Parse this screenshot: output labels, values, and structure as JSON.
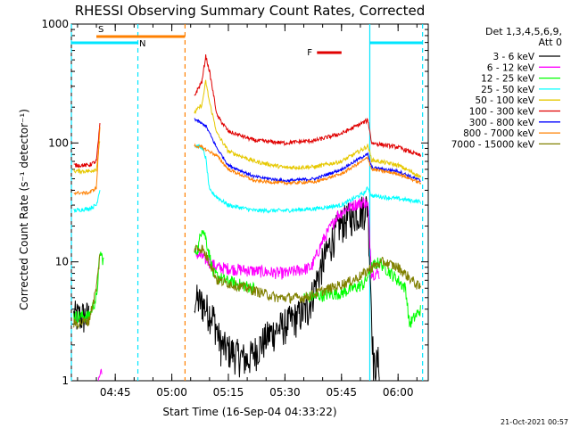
{
  "chart_data": {
    "type": "line",
    "title": "RHESSI Observing Summary Count Rates, Corrected",
    "ylabel": "Corrected Count Rate (s⁻¹ detector⁻¹)",
    "xlabel": "Start Time (16-Sep-04 04:33:22)",
    "y_scale": "log",
    "ylim": [
      1,
      1000
    ],
    "y_ticks": [
      {
        "value": 1,
        "label": "1"
      },
      {
        "value": 10,
        "label": "10"
      },
      {
        "value": 100,
        "label": "100"
      },
      {
        "value": 1000,
        "label": "1000"
      }
    ],
    "xlim": [
      "04:33:22",
      "06:08:00"
    ],
    "x_ticks": [
      {
        "value": "04:45",
        "label": "04:45"
      },
      {
        "value": "05:00",
        "label": "05:00"
      },
      {
        "value": "05:15",
        "label": "05:15"
      },
      {
        "value": "05:30",
        "label": "05:30"
      },
      {
        "value": "05:45",
        "label": "05:45"
      },
      {
        "value": "06:00",
        "label": "06:00"
      }
    ],
    "legend_header": [
      "Det 1,3,4,5,6,9,",
      "Att 0"
    ],
    "legend_position": "right",
    "date_stamp": "21-Oct-2021 00:57",
    "intervals": [
      {
        "label": "S",
        "color": "#ff8000",
        "start": "04:40:00",
        "end": "05:03:30"
      },
      {
        "label": "N",
        "color": "#00e5ff",
        "start": "04:33:22",
        "end": "04:51:00"
      },
      {
        "label": "F",
        "color": "#e00000",
        "start": "05:38:30",
        "end": "05:45:00"
      },
      {
        "label": "",
        "color": "#00e5ff",
        "start": "05:52:30",
        "end": "06:06:30"
      }
    ],
    "vlines": [
      {
        "time": "04:33:22",
        "color": "#00e5ff",
        "style": "dashed"
      },
      {
        "time": "04:51:00",
        "color": "#00e5ff",
        "style": "dashed"
      },
      {
        "time": "05:03:30",
        "color": "#ff8000",
        "style": "dashed"
      },
      {
        "time": "05:52:30",
        "color": "#00e5ff",
        "style": "solid"
      },
      {
        "time": "06:06:30",
        "color": "#00e5ff",
        "style": "dashed"
      }
    ],
    "series": [
      {
        "name": "3 - 6 keV",
        "color": "#000000",
        "noise": 0.35,
        "points": [
          [
            "04:34",
            "3.5"
          ],
          [
            "04:38",
            "3.5"
          ],
          [
            "05:06",
            "5"
          ],
          [
            "05:08",
            "4.5"
          ],
          [
            "05:11",
            "3.5"
          ],
          [
            "05:13",
            "2"
          ],
          [
            "05:20",
            "1.5"
          ],
          [
            "05:26",
            "2.5"
          ],
          [
            "05:30",
            "3"
          ],
          [
            "05:36",
            "4"
          ],
          [
            "05:40",
            "10"
          ],
          [
            "05:44",
            "20"
          ],
          [
            "05:48",
            "25"
          ],
          [
            "05:51",
            "28"
          ],
          [
            "05:52",
            "30"
          ],
          [
            "05:53:30",
            "1.3"
          ],
          [
            "05:55",
            "1.5"
          ],
          [
            "06:07",
            "1.2"
          ]
        ]
      },
      {
        "name": "6 - 12 keV",
        "color": "#ff00ff",
        "noise": 0.12,
        "points": [
          [
            "04:40:30",
            "1"
          ],
          [
            "04:41:30",
            "1.3"
          ],
          [
            "05:06",
            "12"
          ],
          [
            "05:08",
            "11"
          ],
          [
            "05:12",
            "9"
          ],
          [
            "05:20",
            "8.5"
          ],
          [
            "05:30",
            "8"
          ],
          [
            "05:37",
            "9"
          ],
          [
            "05:40",
            "15"
          ],
          [
            "05:44",
            "25"
          ],
          [
            "05:48",
            "30"
          ],
          [
            "05:51",
            "32"
          ],
          [
            "05:52",
            "30"
          ],
          [
            "05:53",
            "8"
          ],
          [
            "05:55",
            "8"
          ]
        ]
      },
      {
        "name": "12 - 25 keV",
        "color": "#00ff00",
        "noise": 0.12,
        "points": [
          [
            "04:34",
            "3.5"
          ],
          [
            "04:38",
            "3.5"
          ],
          [
            "04:40",
            "5"
          ],
          [
            "04:41",
            "12"
          ],
          [
            "04:42",
            "10"
          ],
          [
            "05:06",
            "12"
          ],
          [
            "05:07",
            "13"
          ],
          [
            "05:08",
            "20"
          ],
          [
            "05:09",
            "16"
          ],
          [
            "05:11",
            "8"
          ],
          [
            "05:14",
            "7"
          ],
          [
            "05:22",
            "6"
          ],
          [
            "05:35",
            "5"
          ],
          [
            "05:45",
            "5.5"
          ],
          [
            "05:48",
            "6"
          ],
          [
            "05:51",
            "6.5"
          ],
          [
            "05:53",
            "9"
          ],
          [
            "05:55",
            "10"
          ],
          [
            "06:00",
            "7"
          ],
          [
            "06:02",
            "6"
          ],
          [
            "06:03",
            "3"
          ],
          [
            "06:06",
            "4"
          ]
        ]
      },
      {
        "name": "25 - 50 keV",
        "color": "#00ffff",
        "noise": 0.04,
        "points": [
          [
            "04:34",
            "27"
          ],
          [
            "04:38",
            "28"
          ],
          [
            "04:40",
            "30"
          ],
          [
            "04:41",
            "42"
          ],
          [
            "05:06",
            "95"
          ],
          [
            "05:08",
            "92"
          ],
          [
            "05:09",
            "75"
          ],
          [
            "05:10",
            "40"
          ],
          [
            "05:12",
            "35"
          ],
          [
            "05:15",
            "30"
          ],
          [
            "05:22",
            "27"
          ],
          [
            "05:30",
            "27"
          ],
          [
            "05:38",
            "28"
          ],
          [
            "05:45",
            "30"
          ],
          [
            "05:51",
            "38"
          ],
          [
            "05:52",
            "42"
          ],
          [
            "05:53",
            "36"
          ],
          [
            "06:00",
            "34"
          ],
          [
            "06:06",
            "32"
          ]
        ]
      },
      {
        "name": "50 - 100 keV",
        "color": "#e6c800",
        "noise": 0.04,
        "points": [
          [
            "04:34",
            "58"
          ],
          [
            "04:38",
            "58"
          ],
          [
            "04:40",
            "60"
          ],
          [
            "04:41",
            "110"
          ],
          [
            "05:06",
            "180"
          ],
          [
            "05:08",
            "210"
          ],
          [
            "05:09",
            "330"
          ],
          [
            "05:10",
            "220"
          ],
          [
            "05:12",
            "120"
          ],
          [
            "05:15",
            "85"
          ],
          [
            "05:22",
            "70"
          ],
          [
            "05:30",
            "62"
          ],
          [
            "05:38",
            "63"
          ],
          [
            "05:45",
            "70"
          ],
          [
            "05:51",
            "90"
          ],
          [
            "05:52",
            "95"
          ],
          [
            "05:53",
            "72"
          ],
          [
            "06:00",
            "65"
          ],
          [
            "06:06",
            "52"
          ]
        ]
      },
      {
        "name": "100 - 300 keV",
        "color": "#e00000",
        "noise": 0.04,
        "points": [
          [
            "04:34",
            "65"
          ],
          [
            "04:38",
            "65"
          ],
          [
            "04:40",
            "70"
          ],
          [
            "04:41",
            "150"
          ],
          [
            "05:06",
            "250"
          ],
          [
            "05:08",
            "330"
          ],
          [
            "05:09",
            "540"
          ],
          [
            "05:10",
            "400"
          ],
          [
            "05:12",
            "170"
          ],
          [
            "05:15",
            "125"
          ],
          [
            "05:22",
            "105"
          ],
          [
            "05:30",
            "100"
          ],
          [
            "05:38",
            "105"
          ],
          [
            "05:45",
            "120"
          ],
          [
            "05:51",
            "150"
          ],
          [
            "05:52",
            "155"
          ],
          [
            "05:53",
            "100"
          ],
          [
            "06:00",
            "92"
          ],
          [
            "06:06",
            "78"
          ]
        ]
      },
      {
        "name": "300 - 800 keV",
        "color": "#0000ff",
        "noise": 0.03,
        "points": [
          [
            "05:06",
            "160"
          ],
          [
            "05:08",
            "145"
          ],
          [
            "05:09",
            "140"
          ],
          [
            "05:12",
            "90"
          ],
          [
            "05:15",
            "65"
          ],
          [
            "05:22",
            "52"
          ],
          [
            "05:30",
            "48"
          ],
          [
            "05:38",
            "50"
          ],
          [
            "05:45",
            "60"
          ],
          [
            "05:51",
            "78"
          ],
          [
            "05:52",
            "80"
          ],
          [
            "05:53",
            "62"
          ],
          [
            "06:00",
            "58"
          ],
          [
            "06:06",
            "48"
          ]
        ]
      },
      {
        "name": "800 - 7000 keV",
        "color": "#ff8000",
        "noise": 0.03,
        "points": [
          [
            "04:34",
            "38"
          ],
          [
            "04:38",
            "38"
          ],
          [
            "04:40",
            "42"
          ],
          [
            "04:41",
            "150"
          ],
          [
            "05:06",
            "95"
          ],
          [
            "05:08",
            "92"
          ],
          [
            "05:12",
            "78"
          ],
          [
            "05:15",
            "60"
          ],
          [
            "05:22",
            "48"
          ],
          [
            "05:30",
            "46"
          ],
          [
            "05:38",
            "47"
          ],
          [
            "05:45",
            "55"
          ],
          [
            "05:51",
            "72"
          ],
          [
            "05:52",
            "75"
          ],
          [
            "05:53",
            "60"
          ],
          [
            "06:00",
            "55"
          ],
          [
            "06:06",
            "46"
          ]
        ]
      },
      {
        "name": "7000 - 15000 keV",
        "color": "#808000",
        "noise": 0.1,
        "points": [
          [
            "04:34",
            "3"
          ],
          [
            "04:38",
            "3.2"
          ],
          [
            "04:40",
            "6"
          ],
          [
            "04:41",
            "12"
          ],
          [
            "05:06",
            "13"
          ],
          [
            "05:08",
            "13"
          ],
          [
            "05:10",
            "10"
          ],
          [
            "05:12",
            "7"
          ],
          [
            "05:20",
            "6"
          ],
          [
            "05:28",
            "5"
          ],
          [
            "05:35",
            "5"
          ],
          [
            "05:42",
            "6"
          ],
          [
            "05:48",
            "7"
          ],
          [
            "05:51",
            "8"
          ],
          [
            "05:53",
            "9"
          ],
          [
            "05:56",
            "10"
          ],
          [
            "06:00",
            "9"
          ],
          [
            "06:06",
            "6"
          ]
        ]
      }
    ]
  }
}
